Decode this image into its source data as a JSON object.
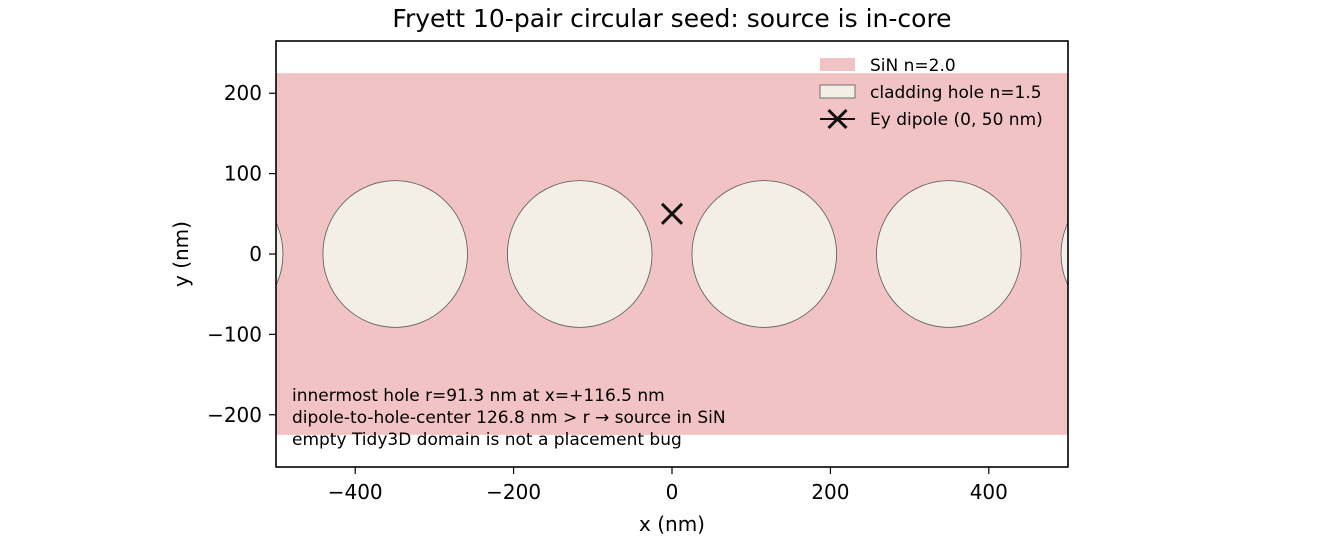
{
  "chart_data": {
    "type": "scatter",
    "title": "Fryett 10-pair circular seed: source is in-core",
    "xlabel": "x (nm)",
    "ylabel": "y (nm)",
    "xlim": [
      -500,
      500
    ],
    "ylim": [
      -265,
      265
    ],
    "x_ticks": [
      -400,
      -200,
      0,
      200,
      400
    ],
    "y_ticks": [
      -200,
      -100,
      0,
      100,
      200
    ],
    "x_tick_labels": [
      "−400",
      "−200",
      "0",
      "200",
      "400"
    ],
    "y_tick_labels": [
      "−200",
      "−100",
      "0",
      "100",
      "200"
    ],
    "grid": false,
    "legend_position": "top-right",
    "core": {
      "label": "SiN n=2.0",
      "y_min": -225,
      "y_max": 225,
      "color": "#f2c3c4"
    },
    "holes": {
      "label": "cladding hole n=1.5",
      "color": "#f3efe7",
      "edge_color": "#555555",
      "items": [
        {
          "x": -582.5,
          "y": 0,
          "r": 91.3
        },
        {
          "x": -349.5,
          "y": 0,
          "r": 91.3
        },
        {
          "x": -116.5,
          "y": 0,
          "r": 91.3
        },
        {
          "x": 116.5,
          "y": 0,
          "r": 91.3
        },
        {
          "x": 349.5,
          "y": 0,
          "r": 91.3
        },
        {
          "x": 582.5,
          "y": 0,
          "r": 91.3
        }
      ]
    },
    "dipole": {
      "label": "Ey dipole (0, 50 nm)",
      "x": 0,
      "y": 50,
      "marker": "x",
      "color": "#111111"
    },
    "annotations": [
      "innermost hole r=91.3 nm at x=+116.5 nm",
      "dipole-to-hole-center 126.8 nm > r  →  source in SiN",
      "empty Tidy3D domain is not a placement bug"
    ]
  }
}
